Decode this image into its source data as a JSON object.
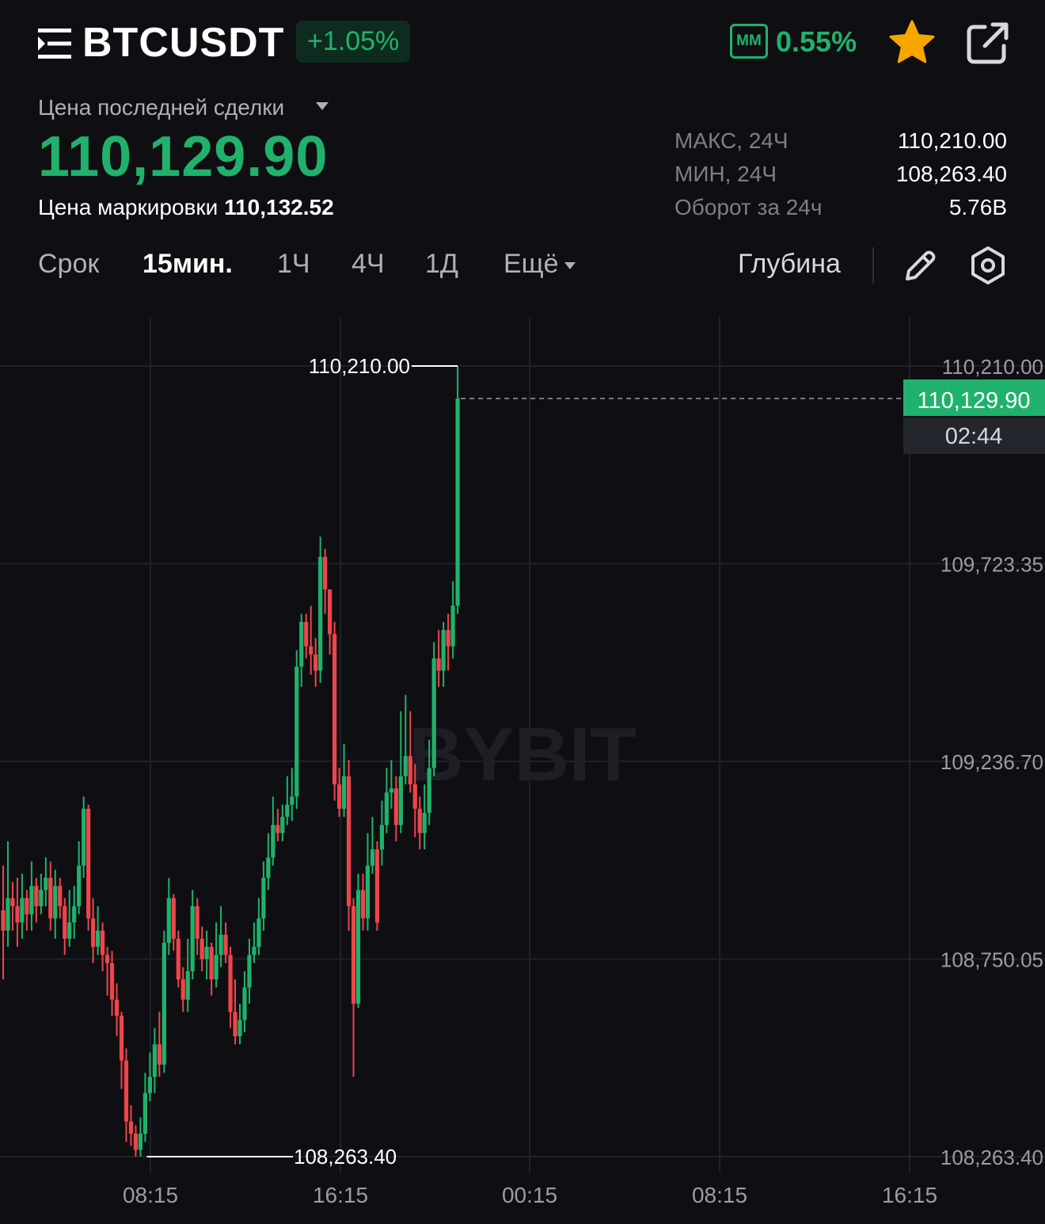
{
  "header": {
    "symbol": "BTCUSDT",
    "change_pct": "+1.05%",
    "mm_label": "MM",
    "mm_value": "0.55%",
    "icons": [
      "menu-icon",
      "star-icon",
      "share-icon"
    ]
  },
  "price_info": {
    "last_label": "Цена последней сделки",
    "last_price": "110,129.90",
    "mark_label": "Цена маркировки",
    "mark_price": "110,132.52"
  },
  "stats": [
    {
      "label": "МАКС, 24Ч",
      "value": "110,210.00"
    },
    {
      "label": "МИН, 24Ч",
      "value": "108,263.40"
    },
    {
      "label": "Оборот за 24ч",
      "value": "5.76B"
    }
  ],
  "timeframes": {
    "label": "Срок",
    "items": [
      "15мин.",
      "1Ч",
      "4Ч",
      "1Д",
      "Ещё"
    ],
    "selected": "15мин.",
    "depth": "Глубина"
  },
  "colors": {
    "up": "#20b26c",
    "down": "#ef454a",
    "background": "#0f0f13",
    "grid": "#1f2127"
  },
  "chart_data": {
    "type": "candlestick",
    "y_ticks": [
      "110,210.00",
      "109,723.35",
      "109,236.70",
      "108,750.05",
      "108,263.40"
    ],
    "y_range": [
      108263.4,
      110210.0
    ],
    "x_ticks": [
      "08:15",
      "16:15",
      "00:15",
      "08:15",
      "16:15"
    ],
    "high_marker": "110,210.00",
    "low_marker": "108,263.40",
    "current_price": "110,129.90",
    "countdown": "02:44",
    "watermark": "BYBIT",
    "candles": [
      [
        108870,
        108820,
        108980,
        108700
      ],
      [
        108820,
        108900,
        109040,
        108780
      ],
      [
        108900,
        108880,
        108940,
        108820
      ],
      [
        108880,
        108840,
        108950,
        108780
      ],
      [
        108840,
        108900,
        108960,
        108800
      ],
      [
        108900,
        108860,
        108920,
        108820
      ],
      [
        108860,
        108930,
        108990,
        108820
      ],
      [
        108930,
        108880,
        108950,
        108840
      ],
      [
        108880,
        108920,
        108960,
        108860
      ],
      [
        108920,
        108950,
        109000,
        108880
      ],
      [
        108950,
        108850,
        108990,
        108820
      ],
      [
        108850,
        108930,
        108970,
        108800
      ],
      [
        108930,
        108880,
        108950,
        108850
      ],
      [
        108880,
        108800,
        108900,
        108760
      ],
      [
        108800,
        108840,
        108920,
        108780
      ],
      [
        108840,
        108880,
        108930,
        108800
      ],
      [
        108880,
        108980,
        109040,
        108860
      ],
      [
        108980,
        109120,
        109150,
        108950
      ],
      [
        109120,
        108850,
        109130,
        108820
      ],
      [
        108850,
        108780,
        108900,
        108740
      ],
      [
        108780,
        108820,
        108880,
        108760
      ],
      [
        108820,
        108760,
        108840,
        108720
      ],
      [
        108760,
        108740,
        108780,
        108660
      ],
      [
        108740,
        108650,
        108770,
        108610
      ],
      [
        108650,
        108610,
        108690,
        108560
      ],
      [
        108610,
        108500,
        108620,
        108430
      ],
      [
        108500,
        108350,
        108530,
        108300
      ],
      [
        108350,
        108320,
        108390,
        108290
      ],
      [
        108320,
        108280,
        108340,
        108263.4
      ],
      [
        108280,
        108320,
        108360,
        108263.4
      ],
      [
        108320,
        108420,
        108470,
        108300
      ],
      [
        108420,
        108460,
        108520,
        108400
      ],
      [
        108460,
        108540,
        108580,
        108420
      ],
      [
        108540,
        108490,
        108620,
        108460
      ],
      [
        108490,
        108790,
        108820,
        108470
      ],
      [
        108790,
        108900,
        108950,
        108760
      ],
      [
        108900,
        108800,
        108910,
        108770
      ],
      [
        108800,
        108700,
        108820,
        108680
      ],
      [
        108700,
        108650,
        108730,
        108620
      ],
      [
        108650,
        108720,
        108800,
        108620
      ],
      [
        108720,
        108880,
        108920,
        108700
      ],
      [
        108880,
        108800,
        108900,
        108760
      ],
      [
        108800,
        108750,
        108830,
        108720
      ],
      [
        108750,
        108780,
        108820,
        108700
      ],
      [
        108780,
        108700,
        108790,
        108660
      ],
      [
        108700,
        108760,
        108840,
        108680
      ],
      [
        108760,
        108810,
        108880,
        108730
      ],
      [
        108810,
        108760,
        108840,
        108740
      ],
      [
        108760,
        108620,
        108780,
        108580
      ],
      [
        108620,
        108560,
        108700,
        108540
      ],
      [
        108560,
        108600,
        108640,
        108540
      ],
      [
        108600,
        108680,
        108720,
        108570
      ],
      [
        108680,
        108760,
        108800,
        108640
      ],
      [
        108760,
        108780,
        108840,
        108740
      ],
      [
        108780,
        108850,
        108900,
        108760
      ],
      [
        108850,
        108950,
        108990,
        108820
      ],
      [
        108950,
        109000,
        109060,
        108920
      ],
      [
        109000,
        109080,
        109150,
        108980
      ],
      [
        109080,
        109060,
        109120,
        109040
      ],
      [
        109060,
        109100,
        109130,
        109040
      ],
      [
        109100,
        109130,
        109200,
        109080
      ],
      [
        109130,
        109150,
        109220,
        109090
      ],
      [
        109150,
        109470,
        109510,
        109120
      ],
      [
        109470,
        109580,
        109600,
        109420
      ],
      [
        109580,
        109520,
        109600,
        109490
      ],
      [
        109520,
        109500,
        109620,
        109450
      ],
      [
        109500,
        109460,
        109540,
        109420
      ],
      [
        109460,
        109740,
        109790,
        109430
      ],
      [
        109740,
        109660,
        109760,
        109600
      ],
      [
        109660,
        109550,
        109660,
        109500
      ],
      [
        109550,
        109180,
        109580,
        109140
      ],
      [
        109180,
        109120,
        109220,
        109100
      ],
      [
        109120,
        109200,
        109280,
        109100
      ],
      [
        109200,
        108880,
        109240,
        108820
      ],
      [
        108880,
        108640,
        108900,
        108460
      ],
      [
        108640,
        108920,
        108960,
        108630
      ],
      [
        108920,
        108850,
        108960,
        108820
      ],
      [
        108850,
        108980,
        109060,
        108820
      ],
      [
        108980,
        109020,
        109100,
        108960
      ],
      [
        109020,
        108840,
        109040,
        108820
      ],
      [
        109020,
        109080,
        109140,
        108980
      ],
      [
        109080,
        109160,
        109220,
        109060
      ],
      [
        109160,
        109170,
        109240,
        109120
      ],
      [
        109170,
        109080,
        109200,
        109040
      ],
      [
        109080,
        109200,
        109360,
        109060
      ],
      [
        109200,
        109250,
        109400,
        109180
      ],
      [
        109250,
        109180,
        109360,
        109160
      ],
      [
        109180,
        109120,
        109230,
        109050
      ],
      [
        109120,
        109060,
        109150,
        109020
      ],
      [
        109060,
        109110,
        109180,
        109020
      ],
      [
        109110,
        109220,
        109290,
        109080
      ],
      [
        109220,
        109490,
        109530,
        109200
      ],
      [
        109490,
        109460,
        109560,
        109420
      ],
      [
        109460,
        109560,
        109580,
        109420
      ],
      [
        109560,
        109520,
        109600,
        109460
      ],
      [
        109520,
        109620,
        109680,
        109490
      ],
      [
        109620,
        110130,
        110210,
        109600
      ]
    ]
  }
}
